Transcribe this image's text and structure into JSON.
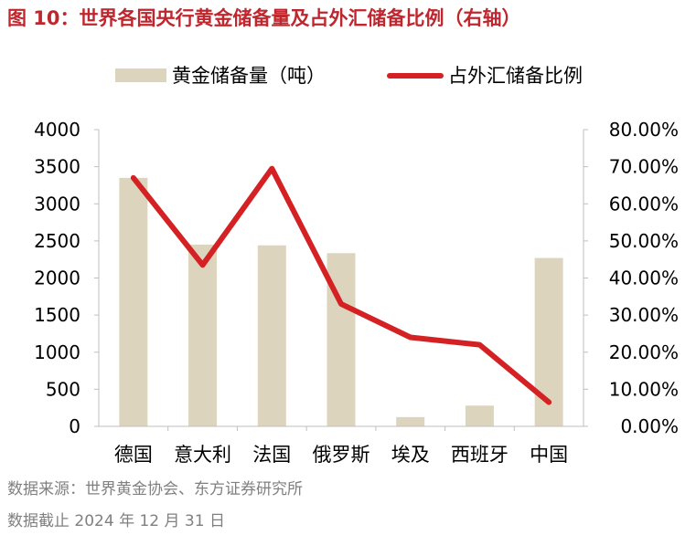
{
  "header": {
    "title": "图 10：世界各国央行黄金储备量及占外汇储备比例（右轴）"
  },
  "footer": {
    "source": "数据来源：世界黄金协会、东方证券研究所",
    "date_note": "数据截止 2024 年 12 月 31 日"
  },
  "colors": {
    "title": "#c0262d",
    "bar": "#ddd4bd",
    "line": "#d42224",
    "note": "#808080",
    "axis": "#000000"
  },
  "chart_data": {
    "type": "bar",
    "categories": [
      "德国",
      "意大利",
      "法国",
      "俄罗斯",
      "埃及",
      "西班牙",
      "中国"
    ],
    "series": [
      {
        "name": "黄金储备量（吨）",
        "type": "bar",
        "axis": "left",
        "values": [
          3350,
          2450,
          2440,
          2335,
          125,
          280,
          2270
        ]
      },
      {
        "name": "占外汇储备比例",
        "type": "line",
        "axis": "right",
        "values": [
          0.67,
          0.435,
          0.695,
          0.33,
          0.24,
          0.22,
          0.065
        ]
      }
    ],
    "y_left": {
      "ylim": [
        0,
        4000
      ],
      "ticks": [
        "0",
        "500",
        "1000",
        "1500",
        "2000",
        "2500",
        "3000",
        "3500",
        "4000"
      ]
    },
    "y_right": {
      "ylim": [
        0,
        0.8
      ],
      "ticks": [
        "0.00%",
        "10.00%",
        "20.00%",
        "30.00%",
        "40.00%",
        "50.00%",
        "60.00%",
        "70.00%",
        "80.00%"
      ]
    },
    "grid": false,
    "legend": "top"
  }
}
